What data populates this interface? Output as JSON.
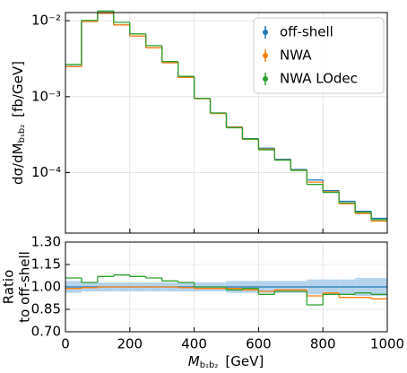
{
  "chart_data": [
    {
      "type": "histogram",
      "log_y": true,
      "grid": true,
      "legend": "upper right",
      "bins": [
        0,
        50,
        100,
        150,
        200,
        250,
        300,
        350,
        400,
        450,
        500,
        550,
        600,
        650,
        700,
        750,
        800,
        850,
        900,
        950,
        1000
      ],
      "xlim": [
        0,
        1000
      ],
      "xticks": [
        0,
        200,
        400,
        600,
        800,
        1000
      ],
      "ylim": [
        1.6e-05,
        0.0128
      ],
      "yticks": [
        {
          "value": 0.0001,
          "label": "10⁻⁴"
        },
        {
          "value": 0.001,
          "label": "10⁻³"
        },
        {
          "value": 0.01,
          "label": "10⁻²"
        }
      ],
      "ylabel": {
        "main": "dσ/dM",
        "sub": "b₁b₂",
        "unit": "[fb/GeV]"
      },
      "series": [
        {
          "name": "off-shell",
          "color": "#1f77b4",
          "values": [
            0.0025,
            0.0098,
            0.0125,
            0.0088,
            0.0063,
            0.0044,
            0.0028,
            0.0018,
            0.00095,
            0.00061,
            0.0004,
            0.00028,
            0.00021,
            0.00015,
            0.00011,
            8e-05,
            5.8e-05,
            4.2e-05,
            3.1e-05,
            2.5e-05
          ]
        },
        {
          "name": "NWA",
          "color": "#ff7f0e",
          "values": [
            0.00248,
            0.00975,
            0.0125,
            0.0088,
            0.0063,
            0.0044,
            0.0028,
            0.00179,
            0.00094,
            0.0006,
            0.000396,
            0.000274,
            0.000204,
            0.000147,
            0.000108,
            7.5e-05,
            5.6e-05,
            3.9e-05,
            2.9e-05,
            2.3e-05
          ]
        },
        {
          "name": "NWA LOdec",
          "color": "#2ca02c",
          "values": [
            0.00265,
            0.0101,
            0.0134,
            0.0095,
            0.0067,
            0.0047,
            0.0029,
            0.00185,
            0.00095,
            0.00061,
            0.00039,
            0.000277,
            0.0002,
            0.000146,
            0.000107,
            7e-05,
            5.5e-05,
            4e-05,
            3e-05,
            2.4e-05
          ]
        }
      ]
    },
    {
      "type": "histogram",
      "grid": true,
      "bins": [
        0,
        50,
        100,
        150,
        200,
        250,
        300,
        350,
        400,
        450,
        500,
        550,
        600,
        650,
        700,
        750,
        800,
        850,
        900,
        950,
        1000
      ],
      "xlim": [
        0,
        1000
      ],
      "xticks": [
        0,
        200,
        400,
        600,
        800,
        1000
      ],
      "xlabel": {
        "main": "M",
        "sub": "b₁b₂",
        "unit": "[GeV]"
      },
      "ylim": [
        0.7,
        1.3
      ],
      "yticks": [
        {
          "value": 0.7,
          "label": "0.70"
        },
        {
          "value": 0.85,
          "label": "0.85"
        },
        {
          "value": 1,
          "label": "1.00"
        },
        {
          "value": 1.15,
          "label": "1.15"
        },
        {
          "value": 1.3,
          "label": "1.30"
        }
      ],
      "ylabel": [
        "Ratio",
        "to off-shell"
      ],
      "band": {
        "color": "#a8cbe8",
        "lower": [
          0.96,
          0.97,
          0.97,
          0.97,
          0.97,
          0.97,
          0.97,
          0.97,
          0.97,
          0.97,
          0.96,
          0.96,
          0.96,
          0.96,
          0.96,
          0.95,
          0.95,
          0.95,
          0.94,
          0.94
        ],
        "upper": [
          1.04,
          1.03,
          1.03,
          1.03,
          1.03,
          1.03,
          1.03,
          1.03,
          1.03,
          1.03,
          1.04,
          1.04,
          1.04,
          1.04,
          1.04,
          1.05,
          1.05,
          1.05,
          1.06,
          1.06
        ]
      },
      "series": [
        {
          "color": "#1f77b4",
          "values": [
            1,
            1,
            1,
            1,
            1,
            1,
            1,
            1,
            1,
            1,
            1,
            1,
            1,
            1,
            1,
            1,
            1,
            1,
            1,
            1
          ]
        },
        {
          "color": "#ff7f0e",
          "values": [
            0.99,
            0.995,
            1,
            1,
            1,
            1,
            1,
            0.995,
            0.99,
            0.99,
            0.99,
            0.98,
            0.97,
            0.98,
            0.98,
            0.94,
            0.96,
            0.93,
            0.93,
            0.92
          ]
        },
        {
          "color": "#2ca02c",
          "values": [
            1.06,
            1.03,
            1.07,
            1.08,
            1.07,
            1.06,
            1.04,
            1.03,
            1,
            1,
            0.98,
            0.99,
            0.95,
            0.97,
            0.97,
            0.88,
            0.95,
            0.95,
            0.96,
            0.95
          ]
        }
      ]
    }
  ]
}
